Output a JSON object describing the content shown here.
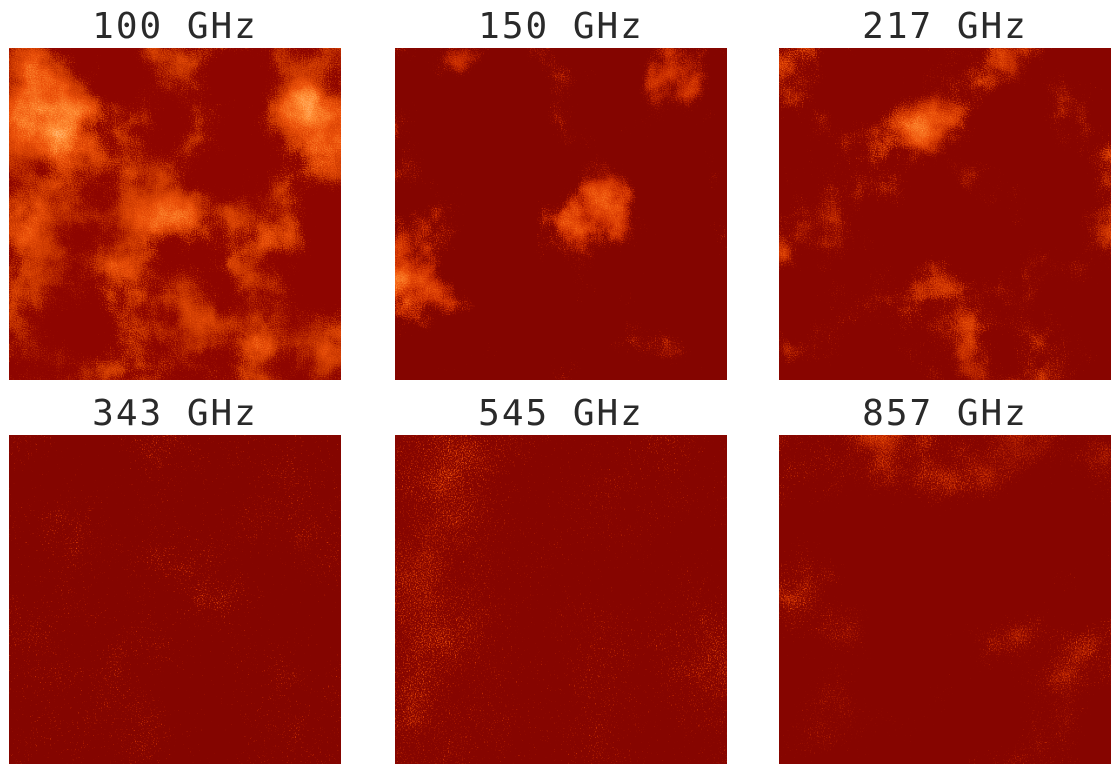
{
  "panels": [
    {
      "title": "100 GHz"
    },
    {
      "title": "150 GHz"
    },
    {
      "title": "217 GHz"
    },
    {
      "title": "343 GHz"
    },
    {
      "title": "545 GHz"
    },
    {
      "title": "857 GHz"
    }
  ]
}
